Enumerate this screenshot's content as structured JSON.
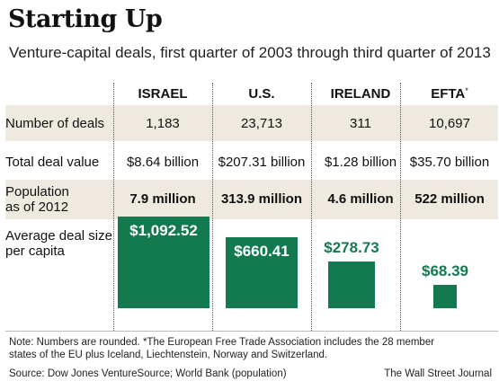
{
  "title": "Starting Up",
  "subtitle": "Venture-capital deals, first quarter of 2003 through third quarter of 2013",
  "columns": [
    {
      "label": "ISRAEL",
      "mark": ""
    },
    {
      "label": "U.S.",
      "mark": ""
    },
    {
      "label": "IRELAND",
      "mark": ""
    },
    {
      "label": "EFTA",
      "mark": "*"
    }
  ],
  "rows": {
    "deals": {
      "label": "Number of deals",
      "values": [
        "1,183",
        "23,713",
        "311",
        "10,697"
      ]
    },
    "value": {
      "label": "Total deal value",
      "values": [
        "$8.64 billion",
        "$207.31 billion",
        "$1.28 billion",
        "$35.70 billion"
      ]
    },
    "population": {
      "label": "Population",
      "sublabel": "as of 2012",
      "values": [
        "7.9 million",
        "313.9 million",
        "4.6 million",
        "522 million"
      ]
    },
    "per_capita": {
      "label": "Average deal size",
      "sublabel": "per capita"
    }
  },
  "chart_data": {
    "type": "bar",
    "categories": [
      "ISRAEL",
      "U.S.",
      "IRELAND",
      "EFTA"
    ],
    "values": [
      1092.52,
      660.41,
      278.73,
      68.39
    ],
    "value_labels": [
      "$1,092.52",
      "$660.41",
      "$278.73",
      "$68.39"
    ],
    "encoding": "square area proportional to value",
    "color": "#137a50"
  },
  "footer": {
    "note_line1": "Note: Numbers are rounded.   *The European Free Trade Association includes the 28 member",
    "note_line2": "states of the EU plus Iceland, Liechtenstein, Norway and Switzerland.",
    "source": "Source: Dow Jones VentureSource; World Bank (population)",
    "credit": "The Wall Street Journal"
  }
}
